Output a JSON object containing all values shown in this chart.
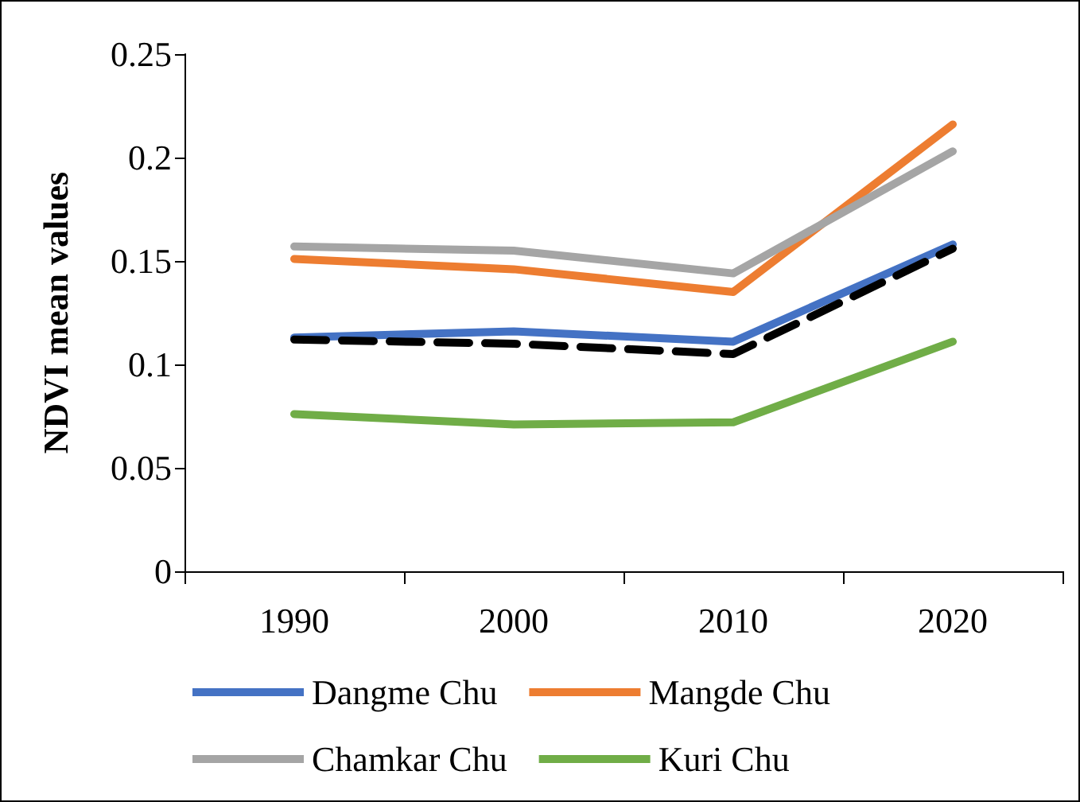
{
  "chart_data": {
    "type": "line",
    "ylabel": "NDVI mean values",
    "categories": [
      "1990",
      "2000",
      "2010",
      "2020"
    ],
    "series": [
      {
        "name": "Dangme Chu",
        "color": "#4472c4",
        "values": [
          0.113,
          0.116,
          0.111,
          0.158
        ]
      },
      {
        "name": "Mangde Chu",
        "color": "#ed7d31",
        "values": [
          0.151,
          0.146,
          0.135,
          0.216
        ]
      },
      {
        "name": "Chamkar Chu",
        "color": "#a5a5a5",
        "values": [
          0.157,
          0.155,
          0.144,
          0.203
        ]
      },
      {
        "name": "Kuri Chu",
        "color": "#70ad47",
        "values": [
          0.076,
          0.071,
          0.072,
          0.111
        ]
      },
      {
        "color": "#000000",
        "line_style": "dashed",
        "values": [
          0.112,
          0.11,
          0.105,
          0.156
        ]
      }
    ],
    "ylim": [
      0,
      0.25
    ],
    "yticks": [
      0,
      0.05,
      0.1,
      0.15,
      0.2,
      0.25
    ],
    "grid": false,
    "legend": "bottom",
    "marker": "none",
    "line_style": "solid"
  }
}
